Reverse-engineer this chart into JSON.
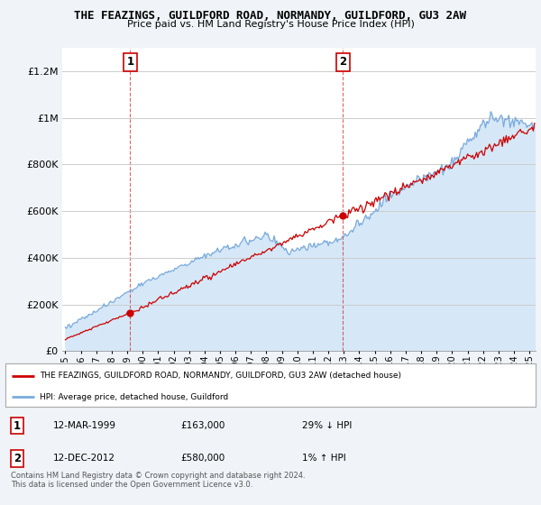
{
  "title": "THE FEAZINGS, GUILDFORD ROAD, NORMANDY, GUILDFORD, GU3 2AW",
  "subtitle": "Price paid vs. HM Land Registry's House Price Index (HPI)",
  "ylim": [
    0,
    1300000
  ],
  "yticks": [
    0,
    200000,
    400000,
    600000,
    800000,
    1000000,
    1200000
  ],
  "ytick_labels": [
    "£0",
    "£200K",
    "£400K",
    "£600K",
    "£800K",
    "£1M",
    "£1.2M"
  ],
  "hpi_color": "#7aabdc",
  "hpi_fill_color": "#d6e8f7",
  "price_color": "#cc0000",
  "vline_color": "#cc0000",
  "marker1_x": 1999.19,
  "marker1_y": 163000,
  "marker1_label": "1",
  "marker2_x": 2012.95,
  "marker2_y": 580000,
  "marker2_label": "2",
  "legend_line1": "THE FEAZINGS, GUILDFORD ROAD, NORMANDY, GUILDFORD, GU3 2AW (detached house)",
  "legend_line2": "HPI: Average price, detached house, Guildford",
  "table_rows": [
    [
      "1",
      "12-MAR-1999",
      "£163,000",
      "29% ↓ HPI"
    ],
    [
      "2",
      "12-DEC-2012",
      "£580,000",
      "1% ↑ HPI"
    ]
  ],
  "footnote": "Contains HM Land Registry data © Crown copyright and database right 2024.\nThis data is licensed under the Open Government Licence v3.0.",
  "background_color": "#f0f4f8",
  "plot_bg_color": "#ffffff",
  "grid_color": "#cccccc",
  "xtick_years": [
    1995,
    1996,
    1997,
    1998,
    1999,
    2000,
    2001,
    2002,
    2003,
    2004,
    2005,
    2006,
    2007,
    2008,
    2009,
    2010,
    2011,
    2012,
    2013,
    2014,
    2015,
    2016,
    2017,
    2018,
    2019,
    2020,
    2021,
    2022,
    2023,
    2024,
    2025
  ]
}
